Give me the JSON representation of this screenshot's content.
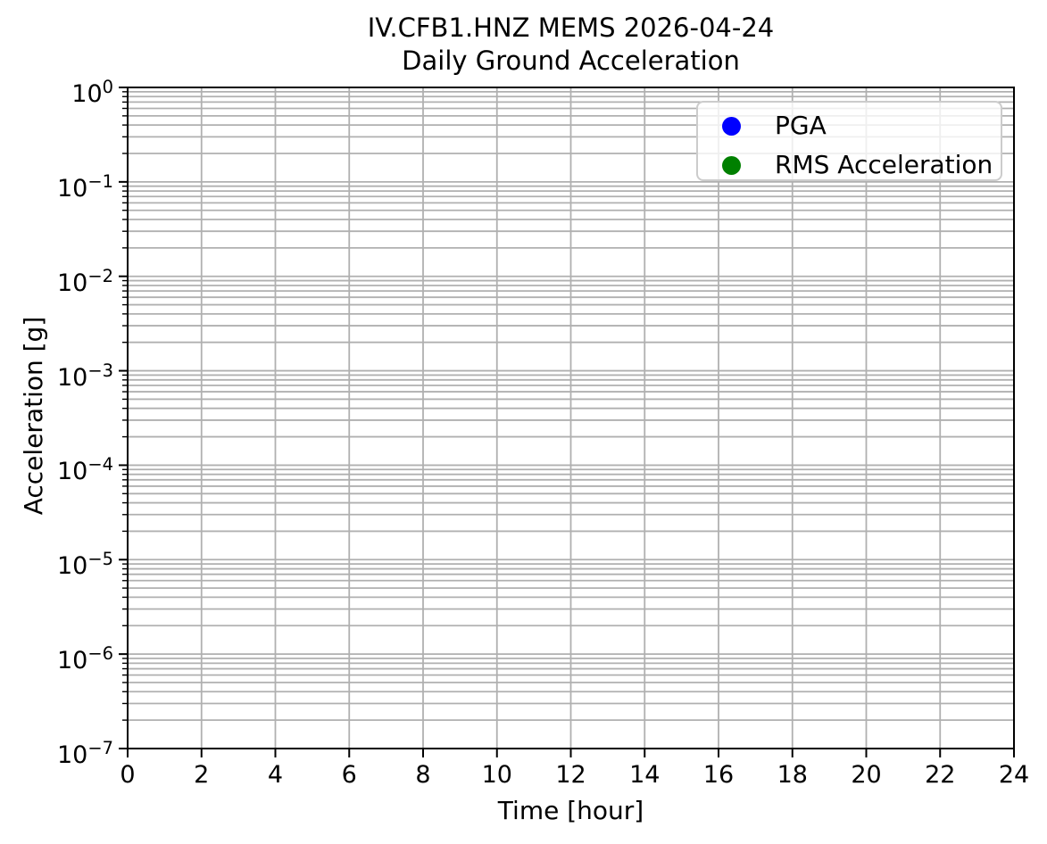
{
  "chart_data": {
    "type": "scatter",
    "title": "IV.CFB1.HNZ MEMS 2026-04-24\nDaily Ground Acceleration",
    "title_lines": [
      "IV.CFB1.HNZ MEMS 2026-04-24",
      "Daily Ground Acceleration"
    ],
    "xlabel": "Time [hour]",
    "ylabel": "Acceleration [g]",
    "xlim": [
      0,
      24
    ],
    "xticks": [
      0,
      2,
      4,
      6,
      8,
      10,
      12,
      14,
      16,
      18,
      20,
      22,
      24
    ],
    "yscale": "log",
    "ylim": [
      1e-07,
      1
    ],
    "ytick_exponents": [
      0,
      -1,
      -2,
      -3,
      -4,
      -5,
      -6,
      -7
    ],
    "grid": {
      "axis": "both",
      "which": "both",
      "color": "#b0b0b0"
    },
    "legend": {
      "position": "upper right",
      "edge_color": "#cccccc",
      "entries": [
        {
          "label": "PGA",
          "color": "#0000ff",
          "marker": "circle"
        },
        {
          "label": "RMS Acceleration",
          "color": "#008000",
          "marker": "circle"
        }
      ]
    },
    "series": [
      {
        "name": "PGA",
        "color": "#0000ff",
        "marker": "circle",
        "x": [],
        "y": []
      },
      {
        "name": "RMS Acceleration",
        "color": "#008000",
        "marker": "circle",
        "x": [],
        "y": []
      }
    ]
  }
}
